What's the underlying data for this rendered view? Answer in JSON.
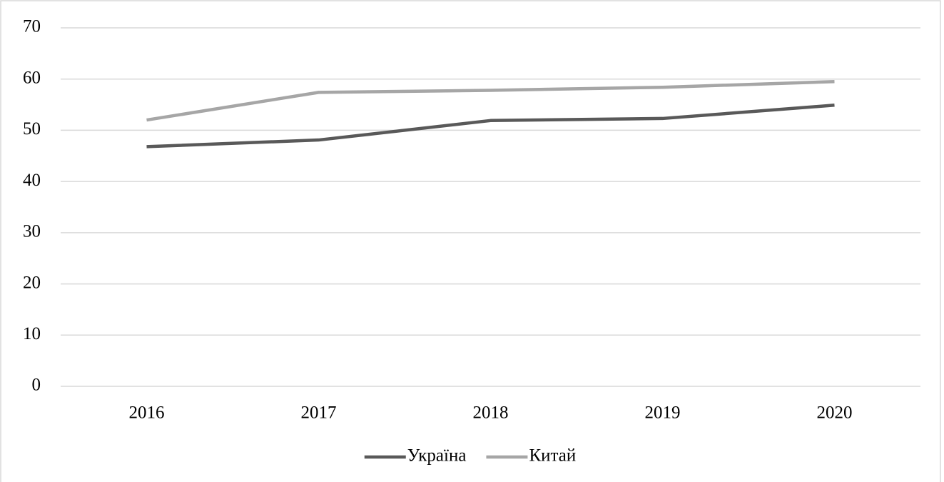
{
  "chart_data": {
    "type": "line",
    "categories": [
      "2016",
      "2017",
      "2018",
      "2019",
      "2020"
    ],
    "series": [
      {
        "name": "Україна",
        "color": "#595959",
        "values": [
          46.8,
          48.1,
          51.9,
          52.3,
          54.9
        ]
      },
      {
        "name": "Китай",
        "color": "#a6a6a6",
        "values": [
          52.0,
          57.4,
          57.8,
          58.4,
          59.5
        ]
      }
    ],
    "ylim": [
      0,
      70
    ],
    "yticks": [
      0,
      10,
      20,
      30,
      40,
      50,
      60,
      70
    ],
    "grid": true,
    "legend": "bottom"
  }
}
